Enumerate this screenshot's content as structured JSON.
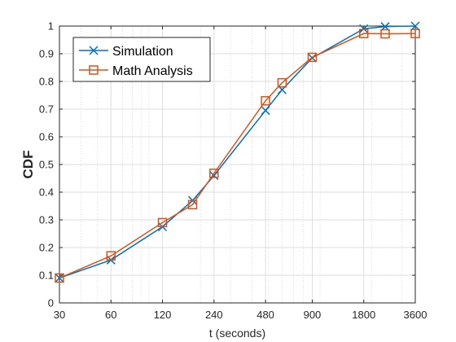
{
  "chart_data": {
    "type": "line",
    "xlabel": "t (seconds)",
    "ylabel": "CDF",
    "xscale": "log",
    "xlim": [
      30,
      3600
    ],
    "ylim": [
      0,
      1
    ],
    "grid": true,
    "minor_grid": true,
    "legend_position": "top-left",
    "xticks": [
      30,
      60,
      120,
      240,
      480,
      900,
      1800,
      3600
    ],
    "xtick_labels": [
      "30",
      "60",
      "120",
      "240",
      "480",
      "900",
      "1800",
      "3600"
    ],
    "yticks": [
      0,
      0.1,
      0.2,
      0.3,
      0.4,
      0.5,
      0.6,
      0.7,
      0.8,
      0.9,
      1
    ],
    "ytick_labels": [
      "0",
      "0.1",
      "0.2",
      "0.3",
      "0.4",
      "0.5",
      "0.6",
      "0.7",
      "0.8",
      "0.9",
      "1"
    ],
    "series": [
      {
        "name": "Simulation",
        "color": "#0072BD",
        "marker": "x",
        "x": [
          30,
          60,
          120,
          180,
          240,
          480,
          600,
          900,
          1800,
          2400,
          3600
        ],
        "y": [
          0.09,
          0.155,
          0.275,
          0.37,
          0.46,
          0.695,
          0.77,
          0.885,
          0.99,
          0.998,
          1.0
        ]
      },
      {
        "name": "Math Analysis",
        "color": "#D95319",
        "marker": "square",
        "x": [
          30,
          60,
          120,
          180,
          240,
          480,
          600,
          900,
          1800,
          2400,
          3600
        ],
        "y": [
          0.09,
          0.17,
          0.29,
          0.355,
          0.468,
          0.73,
          0.795,
          0.887,
          0.973,
          0.972,
          0.973
        ]
      }
    ]
  }
}
